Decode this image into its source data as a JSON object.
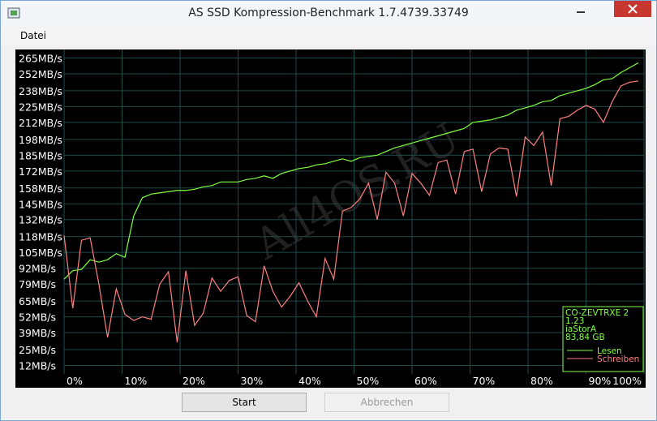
{
  "window_title": "AS SSD Kompression-Benchmark 1.7.4739.33749",
  "menu": [
    "Datei"
  ],
  "buttons": [
    "Start",
    "Abbrechen"
  ],
  "chart_data": {
    "type": "line",
    "x": [
      0,
      1.5,
      3,
      4.5,
      6,
      7.5,
      9,
      10.5,
      12,
      13.5,
      15,
      16.5,
      18,
      19.5,
      21,
      22.5,
      24,
      25.5,
      27,
      28.5,
      30,
      31.5,
      33,
      34.5,
      36,
      37.5,
      39,
      40.5,
      42,
      43.5,
      45,
      46.5,
      48,
      49.5,
      51,
      52.5,
      54,
      55.5,
      57,
      58.5,
      60,
      61.5,
      63,
      64.5,
      66,
      67.5,
      69,
      70.5,
      72,
      73.5,
      75,
      76.5,
      78,
      79.5,
      81,
      82.5,
      84,
      85.5,
      87,
      88.5,
      90,
      91.5,
      93,
      94.5,
      96,
      97.5,
      99
    ],
    "series": [
      {
        "name": "Lesen",
        "color": "#80ff40",
        "values": [
          83,
          90,
          91,
          99,
          97,
          99,
          104,
          101,
          135,
          150,
          153,
          154,
          155,
          156,
          156,
          157,
          159,
          160,
          163,
          163,
          163,
          165,
          166,
          168,
          166,
          170,
          172,
          174,
          175,
          177,
          178,
          180,
          182,
          180,
          183,
          184,
          185,
          188,
          191,
          193,
          195,
          197,
          199,
          201,
          203,
          205,
          207,
          212,
          213,
          214,
          216,
          218,
          222,
          224,
          226,
          229,
          230,
          234,
          236,
          238,
          240,
          243,
          247,
          248,
          253,
          257,
          261
        ]
      },
      {
        "name": "Schreiben",
        "color": "#ff8080",
        "values": [
          119,
          59,
          115,
          117,
          79,
          35,
          75,
          54,
          49,
          52,
          50,
          79,
          89,
          31,
          90,
          45,
          55,
          84,
          73,
          82,
          85,
          53,
          48,
          94,
          73,
          60,
          69,
          80,
          65,
          52,
          100,
          83,
          139,
          142,
          149,
          162,
          132,
          171,
          162,
          135,
          170,
          162,
          152,
          179,
          181,
          153,
          188,
          190,
          155,
          186,
          191,
          190,
          151,
          200,
          193,
          204,
          160,
          215,
          217,
          222,
          226,
          223,
          212,
          229,
          242,
          245,
          246
        ]
      }
    ],
    "xlim": [
      0,
      100
    ],
    "xticks": [
      {
        "value": 0,
        "label": "0%"
      },
      {
        "value": 10,
        "label": "10%"
      },
      {
        "value": 20,
        "label": "20%"
      },
      {
        "value": 30,
        "label": "30%"
      },
      {
        "value": 40,
        "label": "40%"
      },
      {
        "value": 50,
        "label": "50%"
      },
      {
        "value": 60,
        "label": "60%"
      },
      {
        "value": 70,
        "label": "70%"
      },
      {
        "value": 80,
        "label": "80%"
      },
      {
        "value": 90,
        "label": "90%"
      },
      {
        "value": 100,
        "label": "100%"
      }
    ],
    "ylim": [
      5,
      272
    ],
    "yticks": [
      {
        "value": 12,
        "label": "12MB/s"
      },
      {
        "value": 25,
        "label": "25MB/s"
      },
      {
        "value": 39,
        "label": "39MB/s"
      },
      {
        "value": 52,
        "label": "52MB/s"
      },
      {
        "value": 65,
        "label": "65MB/s"
      },
      {
        "value": 79,
        "label": "79MB/s"
      },
      {
        "value": 92,
        "label": "92MB/s"
      },
      {
        "value": 105,
        "label": "105MB/s"
      },
      {
        "value": 118,
        "label": "118MB/s"
      },
      {
        "value": 132,
        "label": "132MB/s"
      },
      {
        "value": 145,
        "label": "145MB/s"
      },
      {
        "value": 158,
        "label": "158MB/s"
      },
      {
        "value": 172,
        "label": "172MB/s"
      },
      {
        "value": 185,
        "label": "185MB/s"
      },
      {
        "value": 198,
        "label": "198MB/s"
      },
      {
        "value": 212,
        "label": "212MB/s"
      },
      {
        "value": 225,
        "label": "225MB/s"
      },
      {
        "value": 238,
        "label": "238MB/s"
      },
      {
        "value": 252,
        "label": "252MB/s"
      },
      {
        "value": 265,
        "label": "265MB/s"
      }
    ],
    "grid": true,
    "grid_color": "#1f4a4a",
    "drive_info": [
      "CO-ZEVTRXE 2",
      "1.23",
      "iaStorA",
      "83,84 GB"
    ],
    "watermark": "All4OS.RU"
  }
}
